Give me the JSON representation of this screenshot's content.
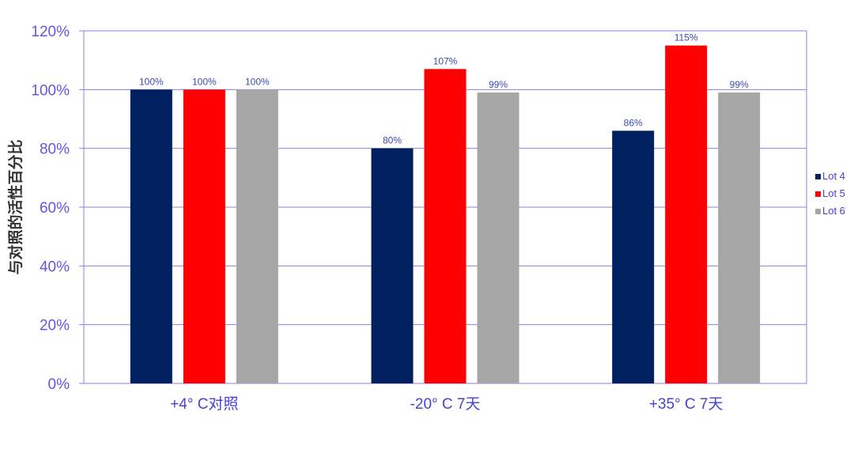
{
  "chart_data": {
    "type": "bar",
    "title": "",
    "xlabel": "",
    "ylabel": "与对照的活性百分比",
    "ylim": [
      0,
      120
    ],
    "yticks": [
      "0%",
      "20%",
      "40%",
      "60%",
      "80%",
      "100%",
      "120%"
    ],
    "grid": true,
    "legend_position": "right",
    "categories": [
      "+4° C对照",
      "-20° C 7天",
      "+35° C 7天"
    ],
    "series": [
      {
        "name": "Lot 4",
        "color": "#00205f",
        "values": [
          100,
          80,
          86
        ],
        "labels": [
          "100%",
          "80%",
          "86%"
        ]
      },
      {
        "name": "Lot 5",
        "color": "#ff0000",
        "values": [
          100,
          107,
          115
        ],
        "labels": [
          "100%",
          "107%",
          "115%"
        ]
      },
      {
        "name": "Lot 6",
        "color": "#a6a6a6",
        "values": [
          100,
          99,
          99
        ],
        "labels": [
          "100%",
          "99%",
          "99%"
        ]
      }
    ]
  }
}
